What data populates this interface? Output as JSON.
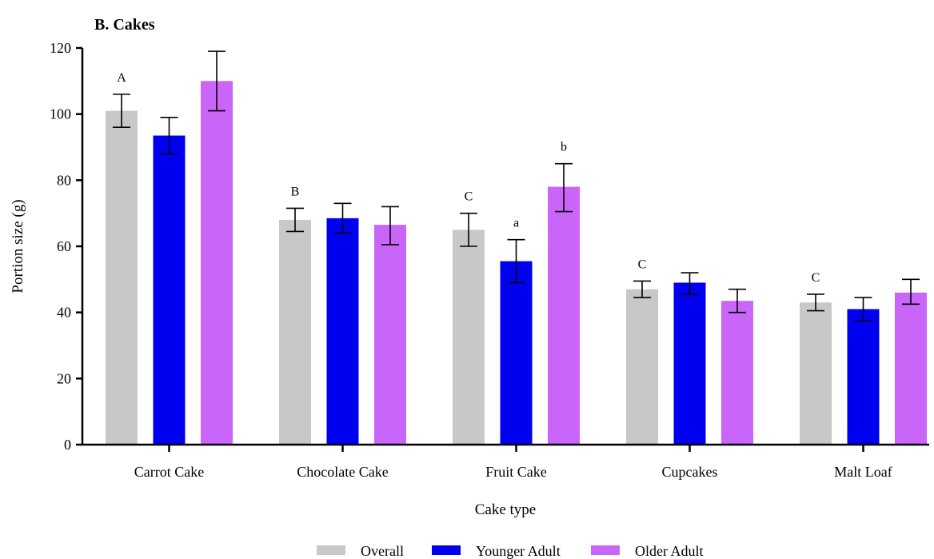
{
  "chart_data": {
    "type": "bar",
    "title": "B. Cakes",
    "xlabel": "Cake type",
    "ylabel": "Portion size (g)",
    "ylim": [
      0,
      120
    ],
    "yticks": [
      "0",
      "20",
      "40",
      "60",
      "80",
      "100",
      "120"
    ],
    "categories": [
      "Carrot Cake",
      "Chocolate Cake",
      "Fruit Cake",
      "Cupcakes",
      "Malt Loaf"
    ],
    "series": [
      {
        "name": "Overall",
        "color": "#c8c8c8",
        "values": [
          101,
          68,
          65,
          47,
          43
        ],
        "err_low": [
          96,
          64.5,
          60,
          44.5,
          40.5
        ],
        "err_high": [
          106,
          71.5,
          70,
          49.5,
          45.5
        ],
        "labels": [
          "A",
          "B",
          "C",
          "C",
          "C"
        ]
      },
      {
        "name": "Younger Adult",
        "color": "#0000f0",
        "values": [
          93.5,
          68.5,
          55.5,
          49,
          41
        ],
        "err_low": [
          88,
          64,
          49,
          45.5,
          37.5
        ],
        "err_high": [
          99,
          73,
          62,
          52,
          44.5
        ],
        "labels": [
          "",
          "",
          "a",
          "",
          ""
        ]
      },
      {
        "name": "Older Adult",
        "color": "#c965f8",
        "values": [
          110,
          66.5,
          78,
          43.5,
          46
        ],
        "err_low": [
          101,
          60.5,
          70.5,
          40,
          42.5
        ],
        "err_high": [
          119,
          72,
          85,
          47,
          50
        ],
        "labels": [
          "",
          "",
          "b",
          "",
          ""
        ]
      }
    ],
    "grid": false,
    "legend_position": "bottom-center"
  }
}
